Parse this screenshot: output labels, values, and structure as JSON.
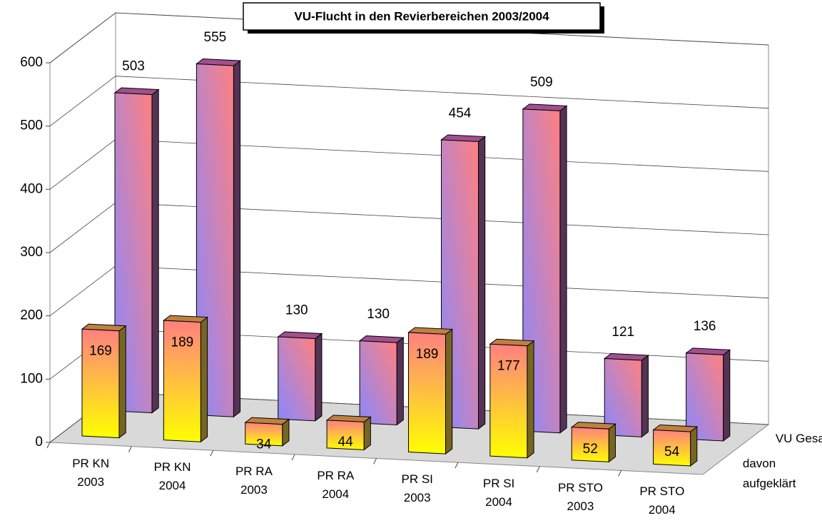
{
  "chart_data": {
    "type": "bar3d",
    "title": "VU-Flucht in den Revierbereichen 2003/2004",
    "categories": [
      "PR KN 2003",
      "PR KN 2004",
      "PR RA 2003",
      "PR RA 2004",
      "PR SI 2003",
      "PR SI 2004",
      "PR STO 2003",
      "PR STO 2004"
    ],
    "series": [
      {
        "name": "davon aufgeklärt",
        "color": "#ffff00",
        "values": [
          169,
          189,
          34,
          44,
          189,
          177,
          52,
          54
        ]
      },
      {
        "name": "VU Gesamt",
        "color": "#8888ff",
        "values": [
          503,
          555,
          130,
          130,
          454,
          509,
          121,
          136
        ]
      }
    ],
    "ylim": [
      0,
      600
    ],
    "yticks": [
      0,
      100,
      200,
      300,
      400,
      500,
      600
    ],
    "grid": true
  }
}
